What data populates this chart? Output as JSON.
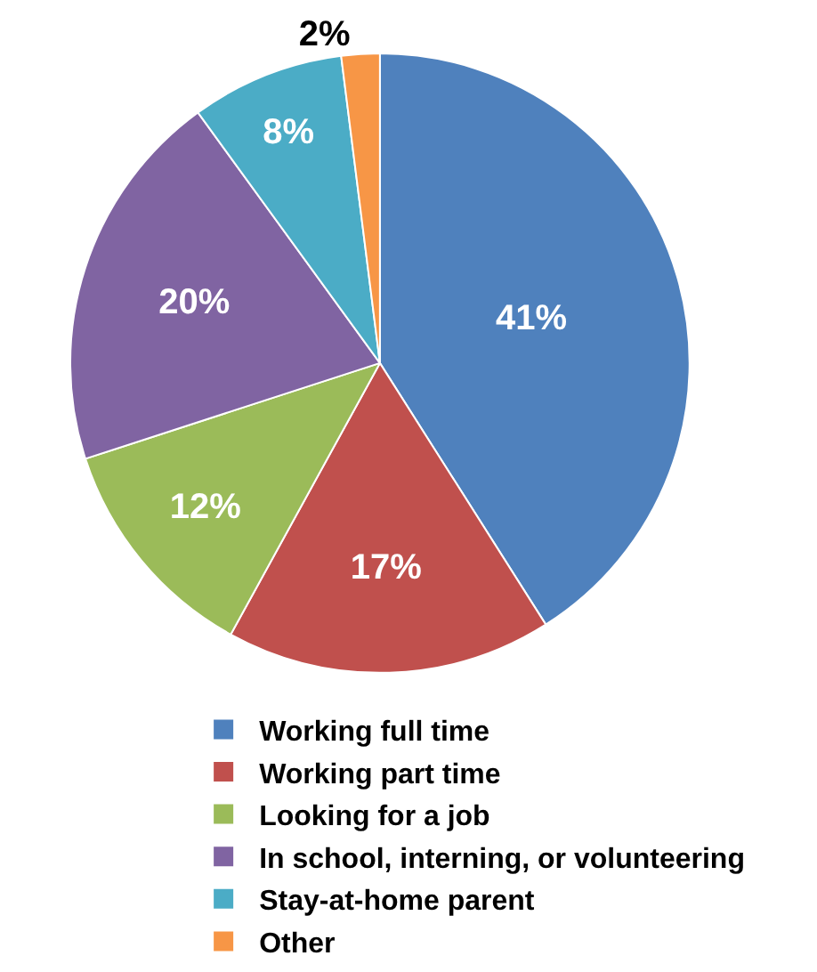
{
  "chart_data": {
    "type": "pie",
    "categories": [
      "Working full time",
      "Working part time",
      "Looking for a job",
      "In school, interning, or volunteering",
      "Stay-at-home parent",
      "Other"
    ],
    "values": [
      41,
      17,
      12,
      20,
      8,
      2
    ],
    "value_labels": [
      "41%",
      "17%",
      "12%",
      "20%",
      "8%",
      "2%"
    ],
    "colors": [
      "#4f81bd",
      "#c0504d",
      "#9bbb59",
      "#8064a2",
      "#4bacc6",
      "#f79646"
    ],
    "legend": "bottom"
  }
}
